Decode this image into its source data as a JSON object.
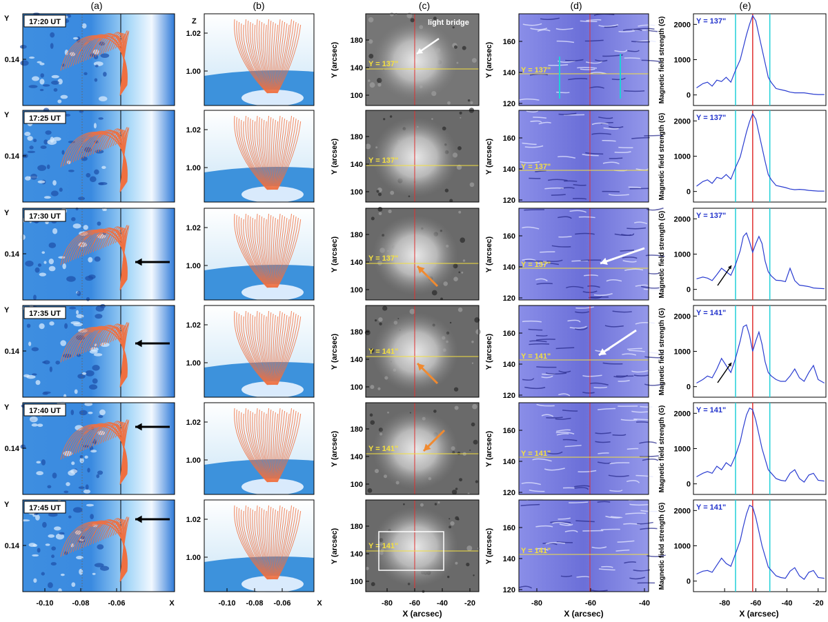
{
  "figure": {
    "column_labels": [
      "(a)",
      "(b)",
      "(c)",
      "(d)",
      "(e)"
    ],
    "colors": {
      "loops": "#f07040",
      "cursor_red": "#e03030",
      "cursor_yellow": "#f4e040",
      "cyan": "#20d0d8",
      "profile": "#2a3cd0",
      "arrow_orange": "#f08a30",
      "label_blue": "#2233cc"
    },
    "col_a": {
      "times": [
        "17:20 UT",
        "17:25 UT",
        "17:30 UT",
        "17:35 UT",
        "17:40 UT",
        "17:45 UT"
      ],
      "y_axis_label": "Y",
      "y_tick": "0.14",
      "x_axis_label": "X",
      "x_ticks": [
        "-0.10",
        "-0.08",
        "-0.06"
      ],
      "arrow_rows": [
        2,
        3,
        4,
        5
      ]
    },
    "col_b": {
      "z_axis_label": "Z",
      "z_ticks": [
        "1.02",
        "1.00"
      ],
      "x_axis_label": "X",
      "x_ticks": [
        "-0.10",
        "-0.08",
        "-0.06"
      ]
    },
    "col_c": {
      "y_labels": [
        "Y = 137\"",
        "Y = 137\"",
        "Y = 137\"",
        "Y = 141\"",
        "Y = 141\"",
        "Y = 141\""
      ],
      "y_axis_label": "Y (arcsec)",
      "y_ticks": [
        "180",
        "140",
        "100"
      ],
      "x_axis_label": "X (arcsec)",
      "x_ticks": [
        "-80",
        "-60",
        "-40",
        "-20"
      ],
      "annotation": "light bridge"
    },
    "col_d": {
      "y_labels": [
        "Y = 137\"",
        "Y = 137\"",
        "Y = 137\"",
        "Y = 141\"",
        "Y = 141\"",
        "Y = 141\""
      ],
      "y_axis_label": "Y (arcsec)",
      "y_ticks": [
        "160",
        "140",
        "120"
      ],
      "x_axis_label": "X (arcsec)",
      "x_ticks": [
        "-80",
        "-60",
        "-40"
      ]
    },
    "col_e": {
      "labels": [
        "Y = 137\"",
        "Y = 137\"",
        "Y = 137\"",
        "Y = 141\"",
        "Y = 141\"",
        "Y = 141\""
      ],
      "y_axis_label": "Magnetic field strength (G)",
      "x_axis_label": "X (arcsec)",
      "x_ticks": [
        "-80",
        "-60",
        "-40",
        "-20"
      ]
    }
  },
  "chart_data": [
    {
      "type": "line",
      "x": [
        -98,
        -94,
        -91,
        -88,
        -85,
        -82,
        -79,
        -76,
        -73,
        -70,
        -68,
        -66,
        -64,
        -62,
        -60,
        -58,
        -56,
        -54,
        -52,
        -50,
        -47,
        -44,
        -41,
        -38,
        -35,
        -32,
        -29,
        -26,
        -23,
        -20,
        -16
      ],
      "ylim": [
        -300,
        2300
      ],
      "y_ticks": [
        0,
        1000,
        2000
      ],
      "xlim": [
        -100,
        -15
      ],
      "vlines": {
        "red": -62,
        "cyan": [
          -73,
          -51
        ]
      },
      "series": [
        {
          "values": [
            200,
            320,
            360,
            250,
            420,
            380,
            500,
            360,
            700,
            1000,
            1350,
            1700,
            2000,
            2250,
            2100,
            1700,
            1300,
            900,
            500,
            350,
            180,
            150,
            120,
            80,
            60,
            60,
            60,
            40,
            20,
            10,
            10
          ]
        },
        {
          "values": [
            150,
            280,
            330,
            230,
            400,
            360,
            480,
            350,
            680,
            980,
            1330,
            1680,
            1980,
            2200,
            2050,
            1650,
            1250,
            850,
            480,
            330,
            170,
            140,
            110,
            70,
            50,
            60,
            50,
            30,
            20,
            10,
            10
          ]
        },
        {
          "values": [
            300,
            350,
            320,
            250,
            420,
            600,
            500,
            400,
            700,
            1100,
            1500,
            1600,
            1350,
            1050,
            1300,
            1500,
            1300,
            800,
            500,
            380,
            260,
            250,
            220,
            600,
            250,
            120,
            100,
            80,
            40,
            30,
            20
          ]
        },
        {
          "values": [
            100,
            200,
            300,
            250,
            500,
            800,
            600,
            400,
            800,
            1300,
            1700,
            1750,
            1450,
            1000,
            1300,
            1550,
            1200,
            700,
            400,
            300,
            200,
            150,
            150,
            300,
            500,
            250,
            150,
            400,
            600,
            200,
            100
          ]
        },
        {
          "values": [
            200,
            300,
            350,
            300,
            500,
            400,
            600,
            500,
            800,
            1200,
            1600,
            1950,
            2150,
            2100,
            1800,
            1400,
            1000,
            700,
            400,
            300,
            150,
            100,
            80,
            300,
            400,
            150,
            50,
            250,
            300,
            100,
            80
          ]
        },
        {
          "values": [
            200,
            280,
            300,
            250,
            450,
            650,
            500,
            420,
            780,
            1150,
            1550,
            1900,
            2150,
            2100,
            1800,
            1400,
            1000,
            700,
            400,
            300,
            150,
            100,
            80,
            280,
            380,
            150,
            50,
            250,
            300,
            100,
            80
          ]
        }
      ]
    }
  ]
}
